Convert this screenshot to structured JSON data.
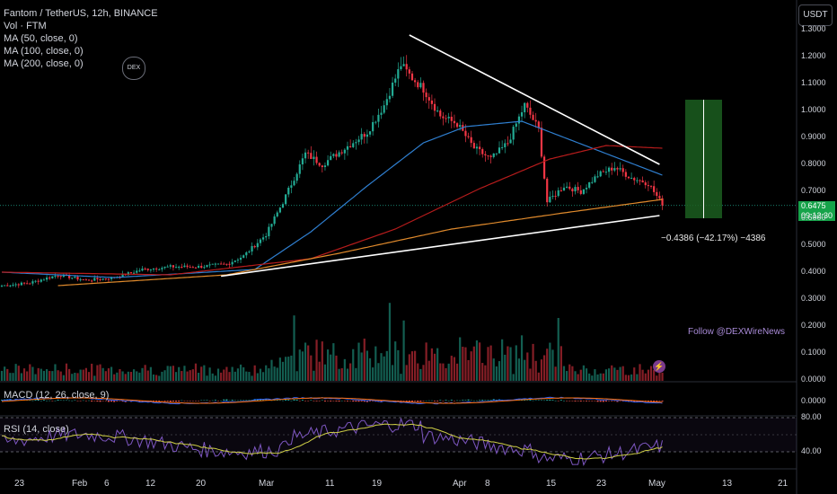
{
  "symbol": {
    "title": "Fantom / TetherUS, 12h, BINANCE",
    "indicators": [
      "Vol · FTM",
      "MA (50, close, 0)",
      "MA (100, close, 0)",
      "MA (200, close, 0)"
    ]
  },
  "currency_button": "USDT",
  "dex_logo_text": "DEX",
  "watermark": "Follow @DEXWireNews",
  "measure_label": "−0.4386 (−42.17%) −4386",
  "price_tag": {
    "price": "0.6475",
    "countdown": "09:12:30"
  },
  "macd_title": "MACD (12, 26, close, 9)",
  "rsi_title": "RSI (14, close)",
  "colors": {
    "up": "#22ab94",
    "down": "#f23645",
    "ma50": "#2f7fd0",
    "ma100": "#b71c1c",
    "ma200": "#e08a2c",
    "trendline": "#ffffff",
    "rsi": "#7e57c2",
    "rsi_ma": "#cfcf46",
    "measure_box": "#1b5e20"
  },
  "chart_data": {
    "type": "candlestick",
    "title": "Fantom / TetherUS, 12h, BINANCE",
    "price_axis": {
      "ticks": [
        1.3,
        1.2,
        1.1,
        1.0,
        0.9,
        0.8,
        0.7,
        0.6,
        0.5,
        0.4,
        0.3,
        0.2,
        0.1,
        0.0
      ],
      "labels": [
        "1.3000",
        "1.2000",
        "1.1000",
        "1.0000",
        "0.9000",
        "0.8000",
        "0.7000",
        "0.6000",
        "0.5000",
        "0.4000",
        "0.3000",
        "0.2000",
        "0.1000",
        "0.0000"
      ]
    },
    "x_axis": {
      "labels": [
        "23",
        "Feb",
        "6",
        "12",
        "20",
        "Mar",
        "11",
        "19",
        "Apr",
        "8",
        "15",
        "23",
        "May",
        "13",
        "21"
      ]
    },
    "close_anchors": [
      {
        "i": 0,
        "v": 0.35
      },
      {
        "i": 10,
        "v": 0.36
      },
      {
        "i": 20,
        "v": 0.39
      },
      {
        "i": 30,
        "v": 0.37
      },
      {
        "i": 40,
        "v": 0.38
      },
      {
        "i": 50,
        "v": 0.41
      },
      {
        "i": 60,
        "v": 0.42
      },
      {
        "i": 70,
        "v": 0.42
      },
      {
        "i": 80,
        "v": 0.43
      },
      {
        "i": 86,
        "v": 0.46
      },
      {
        "i": 94,
        "v": 0.54
      },
      {
        "i": 100,
        "v": 0.66
      },
      {
        "i": 108,
        "v": 0.84
      },
      {
        "i": 114,
        "v": 0.8
      },
      {
        "i": 122,
        "v": 0.86
      },
      {
        "i": 130,
        "v": 0.92
      },
      {
        "i": 136,
        "v": 1.02
      },
      {
        "i": 142,
        "v": 1.17
      },
      {
        "i": 146,
        "v": 1.12
      },
      {
        "i": 150,
        "v": 1.08
      },
      {
        "i": 156,
        "v": 0.98
      },
      {
        "i": 162,
        "v": 0.95
      },
      {
        "i": 168,
        "v": 0.86
      },
      {
        "i": 174,
        "v": 0.82
      },
      {
        "i": 180,
        "v": 0.88
      },
      {
        "i": 186,
        "v": 1.02
      },
      {
        "i": 191,
        "v": 0.93
      },
      {
        "i": 194,
        "v": 0.66
      },
      {
        "i": 200,
        "v": 0.72
      },
      {
        "i": 206,
        "v": 0.7
      },
      {
        "i": 212,
        "v": 0.76
      },
      {
        "i": 218,
        "v": 0.79
      },
      {
        "i": 224,
        "v": 0.75
      },
      {
        "i": 230,
        "v": 0.73
      },
      {
        "i": 235,
        "v": 0.65
      }
    ],
    "last_price": 0.6475,
    "ma50_anchors": [
      {
        "i": 0,
        "v": 0.4
      },
      {
        "i": 40,
        "v": 0.38
      },
      {
        "i": 90,
        "v": 0.41
      },
      {
        "i": 110,
        "v": 0.55
      },
      {
        "i": 130,
        "v": 0.72
      },
      {
        "i": 150,
        "v": 0.88
      },
      {
        "i": 165,
        "v": 0.94
      },
      {
        "i": 185,
        "v": 0.96
      },
      {
        "i": 200,
        "v": 0.9
      },
      {
        "i": 220,
        "v": 0.82
      },
      {
        "i": 235,
        "v": 0.76
      }
    ],
    "ma100_anchors": [
      {
        "i": 0,
        "v": 0.4
      },
      {
        "i": 60,
        "v": 0.39
      },
      {
        "i": 110,
        "v": 0.45
      },
      {
        "i": 140,
        "v": 0.56
      },
      {
        "i": 170,
        "v": 0.71
      },
      {
        "i": 195,
        "v": 0.82
      },
      {
        "i": 215,
        "v": 0.87
      },
      {
        "i": 235,
        "v": 0.86
      }
    ],
    "ma200_anchors": [
      {
        "i": 20,
        "v": 0.35
      },
      {
        "i": 80,
        "v": 0.39
      },
      {
        "i": 120,
        "v": 0.47
      },
      {
        "i": 160,
        "v": 0.56
      },
      {
        "i": 200,
        "v": 0.62
      },
      {
        "i": 235,
        "v": 0.67
      }
    ],
    "trendlines": [
      {
        "from": {
          "i": 145,
          "v": 1.28
        },
        "to": {
          "i": 234,
          "v": 0.8
        }
      },
      {
        "from": {
          "i": 78,
          "v": 0.385
        },
        "to": {
          "i": 234,
          "v": 0.61
        }
      }
    ],
    "measure": {
      "from_price": 1.04,
      "to_price": 0.6,
      "change": "−0.4386 (−42.17%)"
    },
    "rsi_axis": {
      "ticks": [
        80,
        40
      ],
      "labels": [
        "80.00",
        "40.00"
      ]
    },
    "macd_axis": {
      "ticks": [
        0
      ],
      "labels": [
        "0.0000"
      ]
    },
    "bar_count": 236,
    "seed": 7
  }
}
